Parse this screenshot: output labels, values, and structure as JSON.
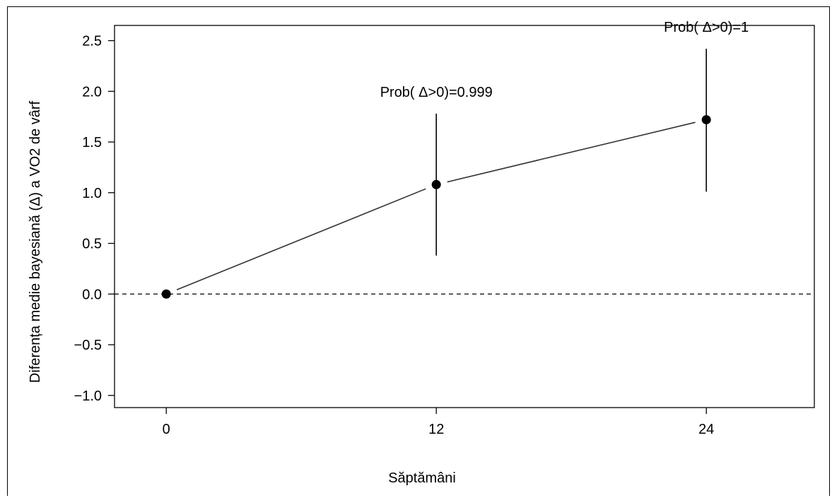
{
  "chart_data": {
    "type": "line",
    "xlabel": "Săptămâni",
    "ylabel": "Diferența medie bayesiană (Δ) a VO2 de vârf",
    "x_ticks": [
      0,
      12,
      24
    ],
    "y_ticks": [
      -1.0,
      -0.5,
      0.0,
      0.5,
      1.0,
      1.5,
      2.0,
      2.5
    ],
    "y_tick_labels": [
      "−1.0",
      "−0.5",
      "0.0",
      "0.5",
      "1.0",
      "1.5",
      "2.0",
      "2.5"
    ],
    "xlim": [
      -2.3,
      28.8
    ],
    "ylim": [
      -1.12,
      2.65
    ],
    "reference_line": {
      "y": 0,
      "style": "dashed"
    },
    "points": [
      {
        "x": 0,
        "y": 0.0,
        "lower": null,
        "upper": null,
        "label": ""
      },
      {
        "x": 12,
        "y": 1.08,
        "lower": 0.38,
        "upper": 1.78,
        "label": "Prob( Δ>0)=0.999"
      },
      {
        "x": 24,
        "y": 1.72,
        "lower": 1.01,
        "upper": 2.42,
        "label": "Prob( Δ>0)=1"
      }
    ],
    "grid": false,
    "legend": "none",
    "colors": {
      "line": "#333333",
      "point": "#000000",
      "axis": "#000000"
    }
  }
}
